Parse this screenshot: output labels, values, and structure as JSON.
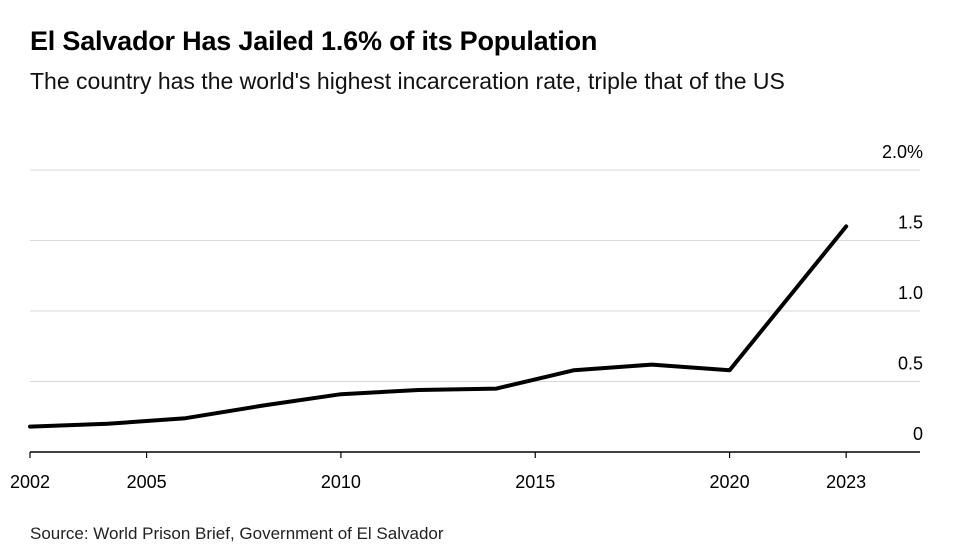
{
  "header": {
    "title": "El Salvador Has Jailed 1.6% of its Population",
    "subtitle": "The country has the world's highest incarceration rate, triple that of the US"
  },
  "footer": {
    "source": "Source: World Prison Brief, Government of El Salvador"
  },
  "colors": {
    "line": "#000000",
    "grid": "#d9d9d9",
    "axis": "#000000"
  },
  "chart_data": {
    "type": "line",
    "title": "El Salvador Has Jailed 1.6% of its Population",
    "subtitle": "The country has the world's highest incarceration rate, triple that of the US",
    "xlabel": "",
    "ylabel": "",
    "xlim": [
      2002,
      2024.9
    ],
    "ylim": [
      0,
      2.0
    ],
    "grid": true,
    "y_axis_side": "right",
    "x_ticks": [
      "2002",
      "2005",
      "2010",
      "2015",
      "2020",
      "2023"
    ],
    "x_tick_values": [
      2002,
      2005,
      2010,
      2015,
      2020,
      2023
    ],
    "y_ticks": [
      "0",
      "0.5",
      "1.0",
      "1.5",
      "2.0%"
    ],
    "y_tick_values": [
      0,
      0.5,
      1.0,
      1.5,
      2.0
    ],
    "series": [
      {
        "x": [
          2002,
          2004,
          2006,
          2008,
          2010,
          2012,
          2014,
          2016,
          2018,
          2020,
          2023
        ],
        "values": [
          0.18,
          0.2,
          0.24,
          0.33,
          0.41,
          0.44,
          0.45,
          0.58,
          0.62,
          0.58,
          1.6
        ]
      }
    ]
  }
}
